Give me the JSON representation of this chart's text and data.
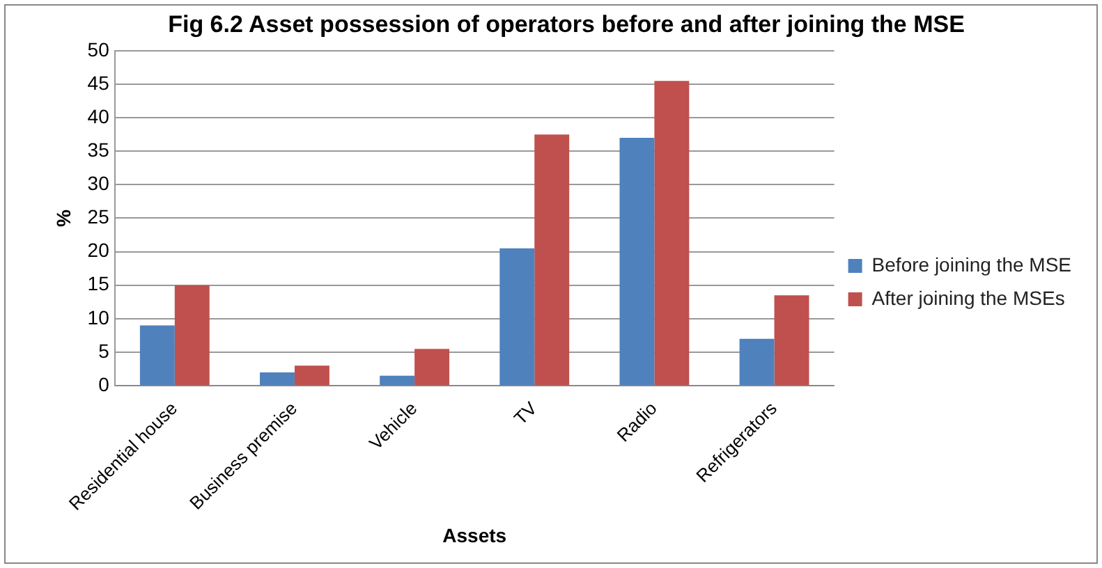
{
  "chart_data": {
    "type": "bar",
    "title": "Fig 6.2 Asset possession of operators before and after joining the MSE",
    "xlabel": "Assets",
    "ylabel": "%",
    "categories": [
      "Residential house",
      "Business premise",
      "Vehicle",
      "TV",
      "Radio",
      "Refrigerators"
    ],
    "series": [
      {
        "name": "Before joining the MSE",
        "color": "#4f81bd",
        "values": [
          9,
          2,
          1.5,
          20.5,
          37,
          7
        ]
      },
      {
        "name": "After joining the MSEs",
        "color": "#c0504d",
        "values": [
          15,
          3,
          5.5,
          37.5,
          45.5,
          13.5
        ]
      }
    ],
    "ylim": [
      0,
      50
    ],
    "yticks": [
      0,
      5,
      10,
      15,
      20,
      25,
      30,
      35,
      40,
      45,
      50
    ],
    "grid": "y",
    "legend": "right"
  }
}
